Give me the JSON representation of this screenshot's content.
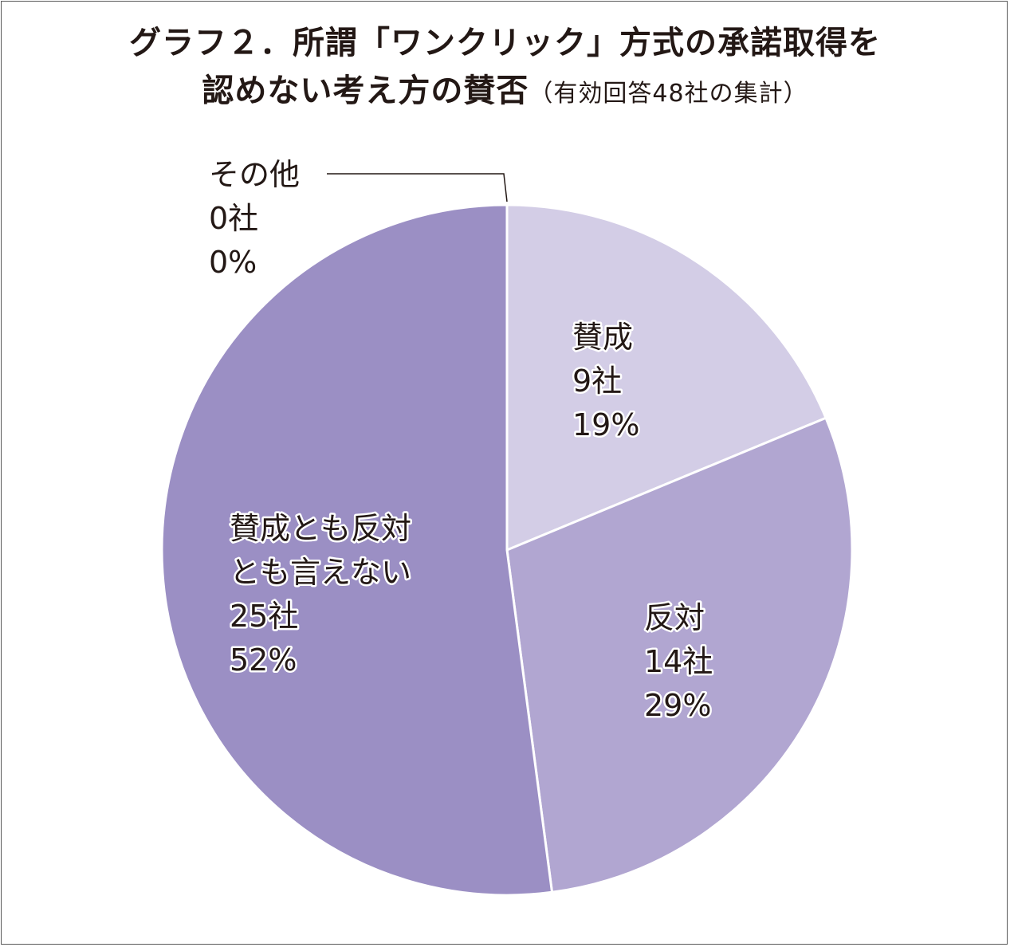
{
  "chart_data": {
    "type": "pie",
    "title": "グラフ２．所謂「ワンクリック」方式の承諾取得を",
    "title_line2": "認めない考え方の賛否",
    "subtitle": "（有効回答48社の集計）",
    "unit": "社",
    "slices": [
      {
        "name": "その他",
        "count": 0,
        "percent_label": "0%",
        "color": "#9b8fc4"
      },
      {
        "name": "賛成",
        "count": 9,
        "percent_label": "19%",
        "color": "#d3cde6"
      },
      {
        "name": "反対",
        "count": 14,
        "percent_label": "29%",
        "color": "#b1a6d1"
      },
      {
        "name": "賛成とも反対とも言えない",
        "count": 25,
        "percent_label": "52%",
        "color": "#9b8fc4"
      }
    ],
    "legend": "none"
  }
}
